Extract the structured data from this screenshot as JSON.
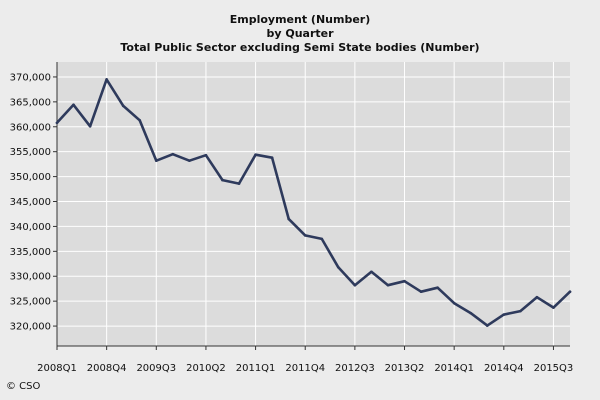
{
  "chart_data": {
    "type": "line",
    "title_lines": [
      "Employment (Number)",
      "by Quarter",
      "Total Public Sector excluding Semi State bodies (Number)"
    ],
    "categories": [
      "2008Q1",
      "2008Q2",
      "2008Q3",
      "2008Q4",
      "2009Q1",
      "2009Q2",
      "2009Q3",
      "2009Q4",
      "2010Q1",
      "2010Q2",
      "2010Q3",
      "2010Q4",
      "2011Q1",
      "2011Q2",
      "2011Q3",
      "2011Q4",
      "2012Q1",
      "2012Q2",
      "2012Q3",
      "2012Q4",
      "2013Q1",
      "2013Q2",
      "2013Q3",
      "2013Q4",
      "2014Q1",
      "2014Q2",
      "2014Q3",
      "2014Q4",
      "2015Q1",
      "2015Q2",
      "2015Q3",
      "2015Q4"
    ],
    "x_tick_labels": [
      "2008Q1",
      "2008Q4",
      "2009Q3",
      "2010Q2",
      "2011Q1",
      "2011Q4",
      "2012Q3",
      "2013Q2",
      "2014Q1",
      "2014Q4",
      "2015Q3"
    ],
    "series": [
      {
        "values": [
          360800,
          364400,
          360100,
          369500,
          364200,
          361300,
          353200,
          354500,
          353200,
          354300,
          349300,
          348600,
          354400,
          353800,
          341500,
          338200,
          337500,
          331800,
          328200,
          330900,
          328200,
          329000,
          326900,
          327700,
          324600,
          322600,
          320100,
          322300,
          323000,
          325800,
          323700,
          326900
        ],
        "color": "#2e3a5c"
      }
    ],
    "ylim": [
      316000,
      373000
    ],
    "y_ticks": [
      320000,
      325000,
      330000,
      335000,
      340000,
      345000,
      350000,
      355000,
      360000,
      365000,
      370000
    ],
    "y_tick_labels": [
      "320,000",
      "325,000",
      "330,000",
      "335,000",
      "340,000",
      "345,000",
      "350,000",
      "355,000",
      "360,000",
      "365,000",
      "370,000"
    ],
    "grid": true,
    "plot_background": "#dcdcdc",
    "grid_color": "#ffffff"
  },
  "footer": {
    "credit": "© CSO"
  }
}
